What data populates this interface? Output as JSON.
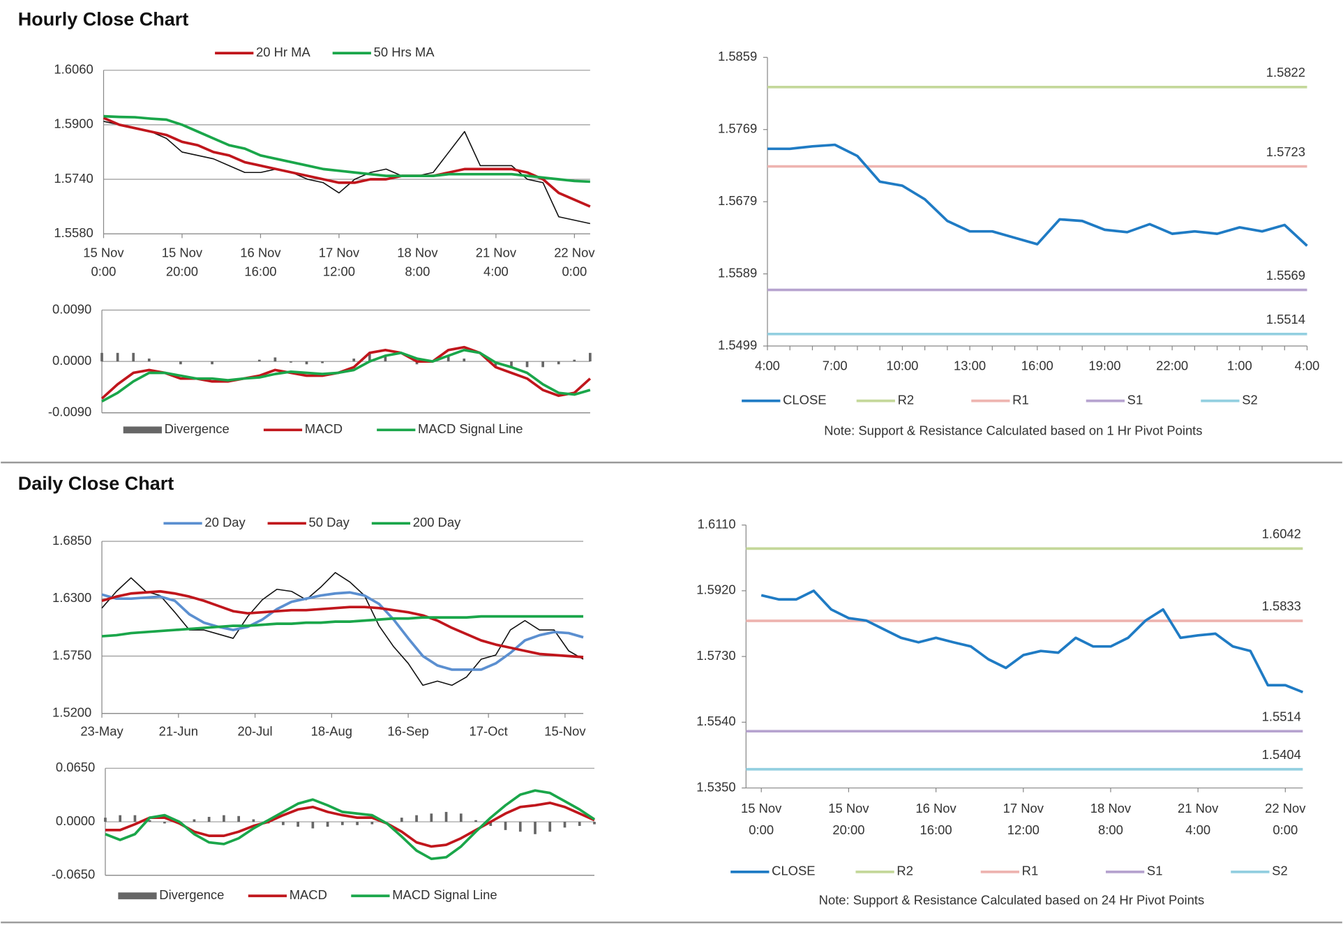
{
  "headings": [
    "Hourly Close Chart",
    "Daily Close Chart"
  ],
  "chart_data": [
    {
      "type": "line",
      "grid": true,
      "x": [
        0,
        4,
        8,
        12,
        16,
        20,
        24,
        28,
        32,
        36,
        40,
        44,
        48,
        52,
        56,
        60,
        64,
        68,
        72,
        76,
        80,
        84,
        88,
        92,
        96,
        100,
        104,
        108,
        112,
        116,
        120,
        124
      ],
      "xlim": [
        0,
        124
      ],
      "xticks": [
        {
          "value": 0,
          "label": [
            "15 Nov",
            "0:00"
          ]
        },
        {
          "value": 20,
          "label": [
            "15 Nov",
            "20:00"
          ]
        },
        {
          "value": 40,
          "label": [
            "16 Nov",
            "16:00"
          ]
        },
        {
          "value": 60,
          "label": [
            "17 Nov",
            "12:00"
          ]
        },
        {
          "value": 80,
          "label": [
            "18 Nov",
            "8:00"
          ]
        },
        {
          "value": 100,
          "label": [
            "21 Nov",
            "4:00"
          ]
        },
        {
          "value": 120,
          "label": [
            "22 Nov",
            "0:00"
          ]
        }
      ],
      "ylim": [
        1.558,
        1.606
      ],
      "yticks": [
        {
          "value": 1.558,
          "label": "1.5580"
        },
        {
          "value": 1.574,
          "label": "1.5740"
        },
        {
          "value": 1.59,
          "label": "1.5900"
        },
        {
          "value": 1.606,
          "label": "1.6060"
        }
      ],
      "series": [
        {
          "color": "#111111",
          "values": [
            1.591,
            1.59,
            1.589,
            1.588,
            1.586,
            1.582,
            1.581,
            1.58,
            1.578,
            1.576,
            1.576,
            1.577,
            1.576,
            1.574,
            1.573,
            1.57,
            1.574,
            1.576,
            1.577,
            1.575,
            1.575,
            1.576,
            1.582,
            1.588,
            1.578,
            1.578,
            1.578,
            1.574,
            1.573,
            1.563,
            1.562,
            1.561
          ]
        },
        {
          "name": "20 Hr MA",
          "color": "#c0161c",
          "values": [
            1.592,
            1.59,
            1.589,
            1.588,
            1.587,
            1.585,
            1.584,
            1.582,
            1.581,
            1.579,
            1.578,
            1.577,
            1.576,
            1.575,
            1.574,
            1.573,
            1.573,
            1.574,
            1.574,
            1.575,
            1.575,
            1.575,
            1.576,
            1.577,
            1.577,
            1.577,
            1.577,
            1.576,
            1.574,
            1.57,
            1.568,
            1.566
          ]
        },
        {
          "name": "50 Hrs MA",
          "color": "#1aa64a",
          "values": [
            1.5925,
            1.5923,
            1.5922,
            1.5918,
            1.5915,
            1.59,
            1.588,
            1.586,
            1.584,
            1.583,
            1.581,
            1.58,
            1.579,
            1.578,
            1.577,
            1.5765,
            1.576,
            1.5755,
            1.575,
            1.575,
            1.575,
            1.575,
            1.5755,
            1.5755,
            1.5755,
            1.5755,
            1.5755,
            1.575,
            1.5745,
            1.574,
            1.5735,
            1.5733
          ]
        }
      ]
    },
    {
      "type": "line",
      "grid": true,
      "x": [
        0,
        4,
        8,
        12,
        16,
        20,
        24,
        28,
        32,
        36,
        40,
        44,
        48,
        52,
        56,
        60,
        64,
        68,
        72,
        76,
        80,
        84,
        88,
        92,
        96,
        100,
        104,
        108,
        112,
        116,
        120,
        124
      ],
      "xlim": [
        0,
        124
      ],
      "ylim": [
        -0.009,
        0.009
      ],
      "yticks": [
        {
          "value": -0.009,
          "label": "-0.0090"
        },
        {
          "value": 0,
          "label": "0.0000"
        },
        {
          "value": 0.009,
          "label": "0.0090"
        }
      ],
      "series": [
        {
          "name": "Divergence",
          "color": "#666666",
          "style": "bars",
          "values": [
            0.0015,
            0.0015,
            0.0015,
            0.0005,
            0,
            -0.0005,
            0,
            -0.0005,
            0,
            0,
            0.0003,
            0.0007,
            -0.0002,
            -0.0005,
            -0.0003,
            0,
            0.0005,
            0.0015,
            0.001,
            0,
            -0.0005,
            0,
            0.001,
            0.0005,
            0,
            -0.0008,
            -0.001,
            -0.001,
            -0.001,
            -0.0005,
            0.0003,
            0.0015
          ]
        },
        {
          "name": "MACD",
          "color": "#c0161c",
          "values": [
            -0.0065,
            -0.004,
            -0.002,
            -0.0015,
            -0.002,
            -0.003,
            -0.003,
            -0.0035,
            -0.0035,
            -0.003,
            -0.0025,
            -0.0015,
            -0.002,
            -0.0025,
            -0.0025,
            -0.002,
            -0.001,
            0.0015,
            0.002,
            0.0015,
            0,
            0,
            0.002,
            0.0025,
            0.0015,
            -0.001,
            -0.002,
            -0.003,
            -0.005,
            -0.006,
            -0.0055,
            -0.003
          ]
        },
        {
          "name": "MACD Signal Line",
          "color": "#1aa64a",
          "values": [
            -0.007,
            -0.0055,
            -0.0035,
            -0.002,
            -0.002,
            -0.0025,
            -0.003,
            -0.003,
            -0.0033,
            -0.003,
            -0.0028,
            -0.0022,
            -0.0018,
            -0.002,
            -0.0022,
            -0.002,
            -0.0015,
            0,
            0.001,
            0.0015,
            0.0005,
            0,
            0.001,
            0.002,
            0.0015,
            -0.0002,
            -0.001,
            -0.002,
            -0.004,
            -0.0055,
            -0.0058,
            -0.005
          ]
        }
      ]
    },
    {
      "type": "line",
      "grid": false,
      "categories": [
        "4:00",
        null,
        null,
        "7:00",
        null,
        null,
        "10:00",
        null,
        null,
        "13:00",
        null,
        null,
        "16:00",
        null,
        null,
        "19:00",
        null,
        null,
        "22:00",
        null,
        null,
        "1:00",
        null,
        null,
        "4:00"
      ],
      "ylim": [
        1.5499,
        1.5859
      ],
      "yticks": [
        1.5499,
        1.5589,
        1.5679,
        1.5769,
        1.5859
      ],
      "series": [
        {
          "name": "CLOSE",
          "color": "#1f7bc4",
          "values": [
            1.5745,
            1.5745,
            1.5748,
            1.575,
            1.5736,
            1.5704,
            1.5699,
            1.5682,
            1.5655,
            1.5642,
            1.5642,
            1.5634,
            1.5626,
            1.5657,
            1.5655,
            1.5644,
            1.5641,
            1.5651,
            1.5639,
            1.5642,
            1.5639,
            1.5647,
            1.5642,
            1.565,
            1.5624
          ]
        }
      ],
      "hlines": [
        {
          "name": "R2",
          "value": 1.5822,
          "color": "#c4d89a"
        },
        {
          "name": "R1",
          "value": 1.5723,
          "color": "#eeb4b0"
        },
        {
          "name": "S1",
          "value": 1.5569,
          "color": "#b6a3cf"
        },
        {
          "name": "S2",
          "value": 1.5514,
          "color": "#93cfe0"
        }
      ],
      "note": "Note: Support & Resistance Calculated based on 1 Hr Pivot Points"
    },
    {
      "type": "line",
      "grid": true,
      "x": [
        0,
        4,
        8,
        12,
        16,
        20,
        24,
        28,
        32,
        36,
        40,
        44,
        48,
        52,
        56,
        60,
        64,
        68,
        72,
        76,
        80,
        84,
        88,
        92,
        96,
        100,
        104,
        108,
        112,
        116,
        120,
        124,
        128,
        132
      ],
      "xlim": [
        0,
        132
      ],
      "xticks": [
        {
          "value": 0,
          "label": "23-May"
        },
        {
          "value": 21,
          "label": "21-Jun"
        },
        {
          "value": 42,
          "label": "20-Jul"
        },
        {
          "value": 63,
          "label": "18-Aug"
        },
        {
          "value": 84,
          "label": "16-Sep"
        },
        {
          "value": 106,
          "label": "17-Oct"
        },
        {
          "value": 127,
          "label": "15-Nov"
        }
      ],
      "ylim": [
        1.52,
        1.685
      ],
      "yticks": [
        {
          "value": 1.52,
          "label": "1.5200"
        },
        {
          "value": 1.575,
          "label": "1.5750"
        },
        {
          "value": 1.63,
          "label": "1.6300"
        },
        {
          "value": 1.685,
          "label": "1.6850"
        }
      ],
      "series": [
        {
          "color": "#111111",
          "values": [
            1.621,
            1.637,
            1.65,
            1.637,
            1.633,
            1.617,
            1.6,
            1.6,
            1.596,
            1.592,
            1.613,
            1.629,
            1.639,
            1.637,
            1.629,
            1.641,
            1.655,
            1.646,
            1.633,
            1.604,
            1.584,
            1.568,
            1.547,
            1.551,
            1.547,
            1.555,
            1.572,
            1.576,
            1.6,
            1.609,
            1.6,
            1.6,
            1.58,
            1.572
          ]
        },
        {
          "name": "20 Day",
          "color": "#5b8fd0",
          "values": [
            1.634,
            1.63,
            1.63,
            1.631,
            1.632,
            1.628,
            1.615,
            1.607,
            1.603,
            1.6,
            1.603,
            1.61,
            1.62,
            1.627,
            1.63,
            1.633,
            1.635,
            1.636,
            1.633,
            1.625,
            1.61,
            1.592,
            1.575,
            1.566,
            1.562,
            1.562,
            1.562,
            1.568,
            1.578,
            1.59,
            1.595,
            1.598,
            1.597,
            1.593
          ]
        },
        {
          "name": "50 Day",
          "color": "#c0161c",
          "values": [
            1.628,
            1.632,
            1.635,
            1.636,
            1.637,
            1.635,
            1.632,
            1.628,
            1.623,
            1.618,
            1.616,
            1.617,
            1.618,
            1.619,
            1.619,
            1.62,
            1.621,
            1.622,
            1.622,
            1.621,
            1.619,
            1.617,
            1.614,
            1.609,
            1.602,
            1.596,
            1.59,
            1.586,
            1.583,
            1.58,
            1.577,
            1.576,
            1.575,
            1.574
          ]
        },
        {
          "name": "200 Day",
          "color": "#1aa64a",
          "values": [
            1.594,
            1.595,
            1.597,
            1.598,
            1.599,
            1.6,
            1.601,
            1.602,
            1.603,
            1.604,
            1.604,
            1.605,
            1.606,
            1.606,
            1.607,
            1.607,
            1.608,
            1.608,
            1.609,
            1.61,
            1.611,
            1.611,
            1.612,
            1.612,
            1.612,
            1.612,
            1.613,
            1.613,
            1.613,
            1.613,
            1.613,
            1.613,
            1.613,
            1.613
          ]
        }
      ]
    },
    {
      "type": "line",
      "grid": true,
      "x": [
        0,
        4,
        8,
        12,
        16,
        20,
        24,
        28,
        32,
        36,
        40,
        44,
        48,
        52,
        56,
        60,
        64,
        68,
        72,
        76,
        80,
        84,
        88,
        92,
        96,
        100,
        104,
        108,
        112,
        116,
        120,
        124,
        128,
        132
      ],
      "xlim": [
        0,
        132
      ],
      "ylim": [
        -0.065,
        0.065
      ],
      "yticks": [
        {
          "value": -0.065,
          "label": "-0.0650"
        },
        {
          "value": 0,
          "label": "0.0000"
        },
        {
          "value": 0.065,
          "label": "0.0650"
        }
      ],
      "series": [
        {
          "name": "Divergence",
          "color": "#666666",
          "style": "bars",
          "values": [
            0.005,
            0.008,
            0.008,
            0.002,
            -0.002,
            -0.002,
            0.003,
            0.006,
            0.008,
            0.007,
            0.003,
            -0.002,
            -0.004,
            -0.006,
            -0.008,
            -0.006,
            -0.004,
            -0.004,
            -0.003,
            0,
            0.005,
            0.008,
            0.01,
            0.012,
            0.01,
            0.002,
            -0.005,
            -0.01,
            -0.012,
            -0.015,
            -0.012,
            -0.007,
            -0.005,
            -0.003
          ]
        },
        {
          "name": "MACD",
          "color": "#c0161c",
          "values": [
            -0.01,
            -0.01,
            -0.003,
            0.005,
            0.005,
            -0.002,
            -0.012,
            -0.017,
            -0.017,
            -0.012,
            -0.005,
            0,
            0.008,
            0.015,
            0.018,
            0.012,
            0.008,
            0.005,
            0.005,
            -0.002,
            -0.012,
            -0.025,
            -0.03,
            -0.028,
            -0.02,
            -0.01,
            0,
            0.01,
            0.018,
            0.02,
            0.023,
            0.018,
            0.01,
            0.002
          ]
        },
        {
          "name": "MACD Signal Line",
          "color": "#1aa64a",
          "values": [
            -0.015,
            -0.022,
            -0.015,
            0.005,
            0.008,
            0,
            -0.015,
            -0.025,
            -0.027,
            -0.02,
            -0.008,
            0.002,
            0.012,
            0.022,
            0.027,
            0.02,
            0.012,
            0.01,
            0.008,
            -0.002,
            -0.018,
            -0.035,
            -0.045,
            -0.043,
            -0.03,
            -0.012,
            0.005,
            0.02,
            0.033,
            0.038,
            0.035,
            0.025,
            0.015,
            0.003
          ]
        }
      ]
    },
    {
      "type": "line",
      "grid": false,
      "x": [
        0,
        4,
        8,
        12,
        16,
        20,
        24,
        28,
        32,
        36,
        40,
        44,
        48,
        52,
        56,
        60,
        64,
        68,
        72,
        76,
        80,
        84,
        88,
        92,
        96,
        100,
        104,
        108,
        112,
        116,
        120,
        124
      ],
      "xlim": [
        -3.5,
        124
      ],
      "xticks": [
        {
          "value": 0,
          "label": [
            "15 Nov",
            "0:00"
          ]
        },
        {
          "value": 20,
          "label": [
            "15 Nov",
            "20:00"
          ]
        },
        {
          "value": 40,
          "label": [
            "16 Nov",
            "16:00"
          ]
        },
        {
          "value": 60,
          "label": [
            "17 Nov",
            "12:00"
          ]
        },
        {
          "value": 80,
          "label": [
            "18 Nov",
            "8:00"
          ]
        },
        {
          "value": 100,
          "label": [
            "21 Nov",
            "4:00"
          ]
        },
        {
          "value": 120,
          "label": [
            "22 Nov",
            "0:00"
          ]
        }
      ],
      "ylim": [
        1.535,
        1.611
      ],
      "yticks": [
        {
          "value": 1.535,
          "label": "1.5350"
        },
        {
          "value": 1.554,
          "label": "1.5540"
        },
        {
          "value": 1.573,
          "label": "1.5730"
        },
        {
          "value": 1.592,
          "label": "1.5920"
        },
        {
          "value": 1.611,
          "label": "1.6110"
        }
      ],
      "series": [
        {
          "name": "CLOSE",
          "color": "#1f7bc4",
          "values": [
            1.5907,
            1.5895,
            1.5895,
            1.592,
            1.5866,
            1.5841,
            1.5834,
            1.5809,
            1.5784,
            1.5771,
            1.5784,
            1.5771,
            1.5759,
            1.5722,
            1.5697,
            1.5734,
            1.5746,
            1.5741,
            1.5784,
            1.5759,
            1.5759,
            1.5784,
            1.5834,
            1.5866,
            1.5784,
            1.5791,
            1.5796,
            1.5759,
            1.5746,
            1.5647,
            1.5647,
            1.5627
          ]
        }
      ],
      "hlines": [
        {
          "name": "R2",
          "value": 1.6042,
          "color": "#c4d89a"
        },
        {
          "name": "R1",
          "value": 1.5833,
          "color": "#eeb4b0"
        },
        {
          "name": "S1",
          "value": 1.5514,
          "color": "#b6a3cf"
        },
        {
          "name": "S2",
          "value": 1.5404,
          "color": "#93cfe0"
        }
      ],
      "note": "Note: Support & Resistance Calculated based on 24 Hr Pivot Points"
    }
  ]
}
